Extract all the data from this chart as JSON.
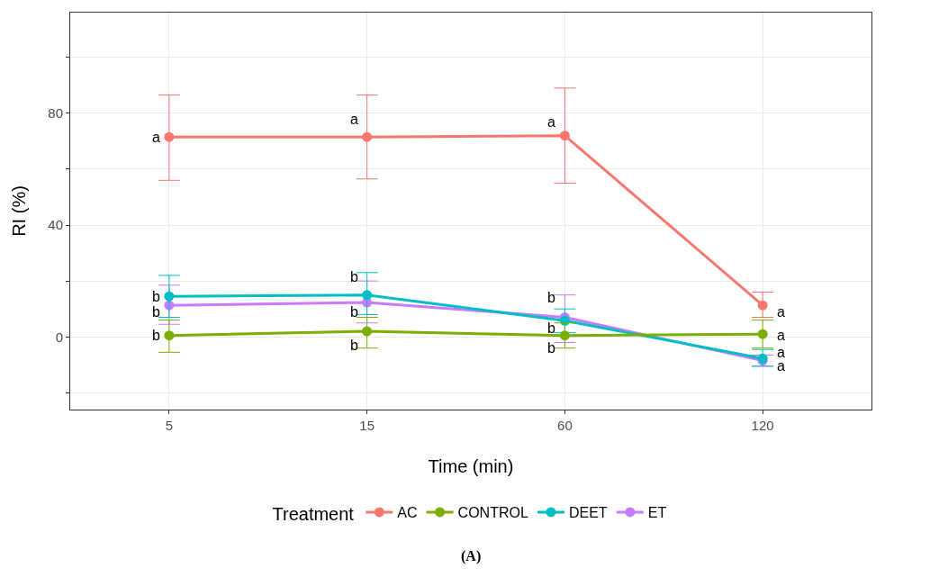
{
  "chart_data": {
    "type": "line",
    "xlabel": "Time (min)",
    "ylabel": "RI (%)",
    "legend_title": "Treatment",
    "categories": [
      "5",
      "15",
      "60",
      "120"
    ],
    "series": [
      {
        "name": "AC",
        "color": "#f8766d",
        "values": [
          71.5,
          71.5,
          72,
          11.3
        ],
        "errors": [
          [
            56,
            86.5
          ],
          [
            56.5,
            86.5
          ],
          [
            55,
            89
          ],
          [
            7,
            16
          ]
        ]
      },
      {
        "name": "CONTROL",
        "color": "#7cae00",
        "values": [
          0.5,
          2,
          0.5,
          1
        ],
        "errors": [
          [
            -5.5,
            6
          ],
          [
            -4,
            7
          ],
          [
            -4,
            5
          ],
          [
            -4,
            6
          ]
        ]
      },
      {
        "name": "DEET",
        "color": "#00bfc4",
        "values": [
          14.5,
          15,
          5.8,
          -7.7
        ],
        "errors": [
          [
            7,
            22
          ],
          [
            8,
            23
          ],
          [
            1.5,
            10
          ],
          [
            -10.5,
            -4.5
          ]
        ]
      },
      {
        "name": "ET",
        "color": "#c77cff",
        "values": [
          11.3,
          12.3,
          7,
          -8.5
        ],
        "errors": [
          [
            4.5,
            18.5
          ],
          [
            5,
            20
          ],
          [
            -2,
            15
          ],
          [
            -10.5,
            -6.5
          ]
        ]
      }
    ],
    "ylim": [
      -26,
      116
    ],
    "yticks": [
      {
        "value": -20,
        "label": null
      },
      0,
      {
        "value": 20,
        "label": null
      },
      40,
      {
        "value": 60,
        "label": null
      },
      80,
      {
        "value": 100,
        "label": null
      }
    ],
    "grid": true,
    "legend": "bottom",
    "marker": "circle",
    "line_style": "solid",
    "annotations": [
      {
        "text": "a",
        "x": "5",
        "y": 71.5
      },
      {
        "text": "b",
        "x": "5",
        "y": 14.5
      },
      {
        "text": "b",
        "x": "5",
        "y": 9
      },
      {
        "text": "b",
        "x": "5",
        "y": 0.5
      },
      {
        "text": "a",
        "x": "15",
        "y": 78
      },
      {
        "text": "b",
        "x": "15",
        "y": 21.5
      },
      {
        "text": "b",
        "x": "15",
        "y": 9
      },
      {
        "text": "b",
        "x": "15",
        "y": -3
      },
      {
        "text": "a",
        "x": "60",
        "y": 77
      },
      {
        "text": "b",
        "x": "60",
        "y": 14
      },
      {
        "text": "b",
        "x": "60",
        "y": 3
      },
      {
        "text": "b",
        "x": "60",
        "y": -4
      },
      {
        "text": "a",
        "x": "120",
        "y": 9
      },
      {
        "text": "a",
        "x": "120",
        "y": 0.5
      },
      {
        "text": "a",
        "x": "120",
        "y": -5.5
      },
      {
        "text": "a",
        "x": "120",
        "y": -10.5
      },
      "(A)"
    ]
  }
}
